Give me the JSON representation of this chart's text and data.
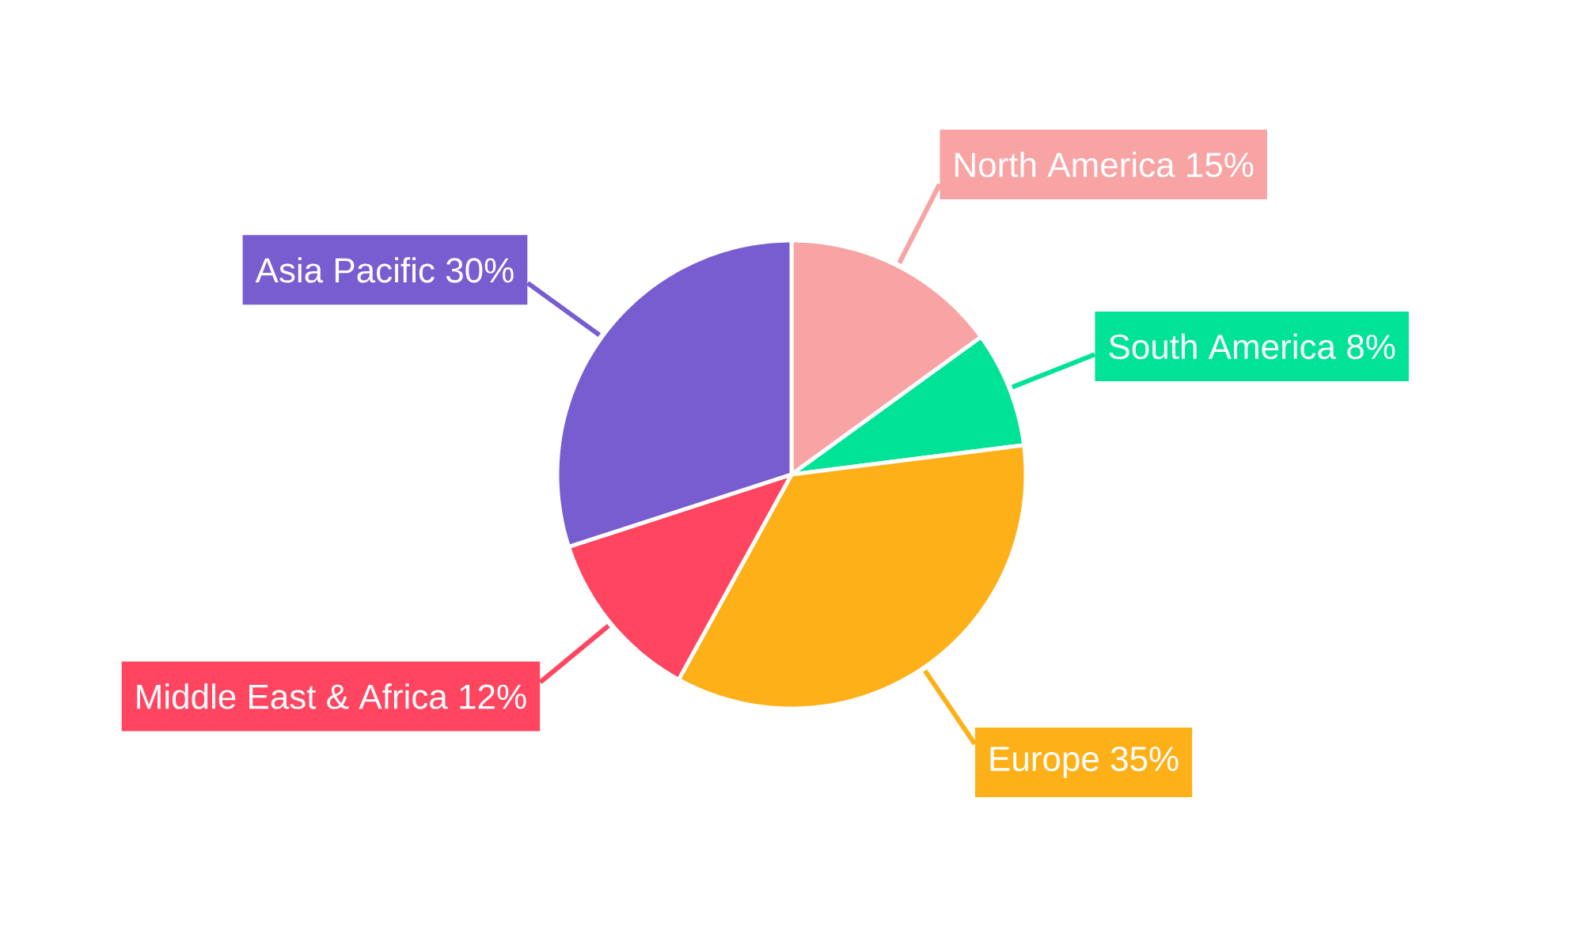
{
  "chart_data": {
    "type": "pie",
    "categories": [
      "North America",
      "South America",
      "Europe",
      "Middle East & Africa",
      "Asia Pacific"
    ],
    "values": [
      15,
      8,
      35,
      12,
      30
    ],
    "value_labels": [
      "15%",
      "8%",
      "35%",
      "12%",
      "30%"
    ],
    "colors": [
      "#f8a3a4",
      "#00e396",
      "#feb019",
      "#ff4560",
      "#775dd0"
    ]
  }
}
